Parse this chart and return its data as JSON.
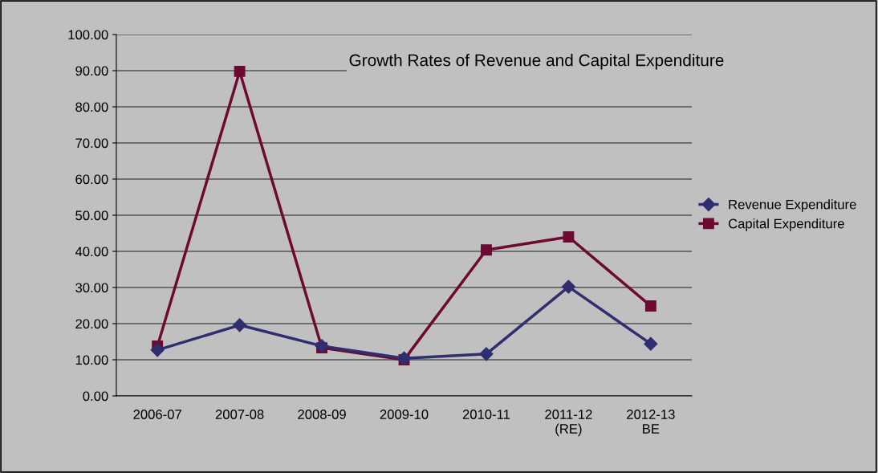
{
  "chart_data": {
    "type": "line",
    "title": "Growth Rates of Revenue and Capital Expenditure",
    "categories": [
      "2006-07",
      "2007-08",
      "2008-09",
      "2009-10",
      "2010-11",
      "2011-12\n(RE)",
      "2012-13\nBE"
    ],
    "series": [
      {
        "name": "Revenue Expenditure",
        "color": "#2e2e70",
        "marker": "diamond",
        "values": [
          12.7,
          19.6,
          13.8,
          10.4,
          11.6,
          30.2,
          14.4
        ]
      },
      {
        "name": "Capital Expenditure",
        "color": "#6e0a32",
        "marker": "square",
        "values": [
          13.8,
          89.8,
          13.3,
          10.0,
          40.4,
          44.0,
          24.9
        ]
      }
    ],
    "ylim": [
      0,
      100
    ],
    "yticks": [
      {
        "value": 0,
        "label": "0.00"
      },
      {
        "value": 10,
        "label": "10.00"
      },
      {
        "value": 20,
        "label": "20.00"
      },
      {
        "value": 30,
        "label": "30.00"
      },
      {
        "value": 40,
        "label": "40.00"
      },
      {
        "value": 50,
        "label": "50.00"
      },
      {
        "value": 60,
        "label": "60.00"
      },
      {
        "value": 70,
        "label": "70.00"
      },
      {
        "value": 80,
        "label": "80.00"
      },
      {
        "value": 90,
        "label": "90.00"
      },
      {
        "value": 100,
        "label": "100.00"
      }
    ],
    "grid": "y",
    "legend": "right",
    "line_style": "solid"
  }
}
